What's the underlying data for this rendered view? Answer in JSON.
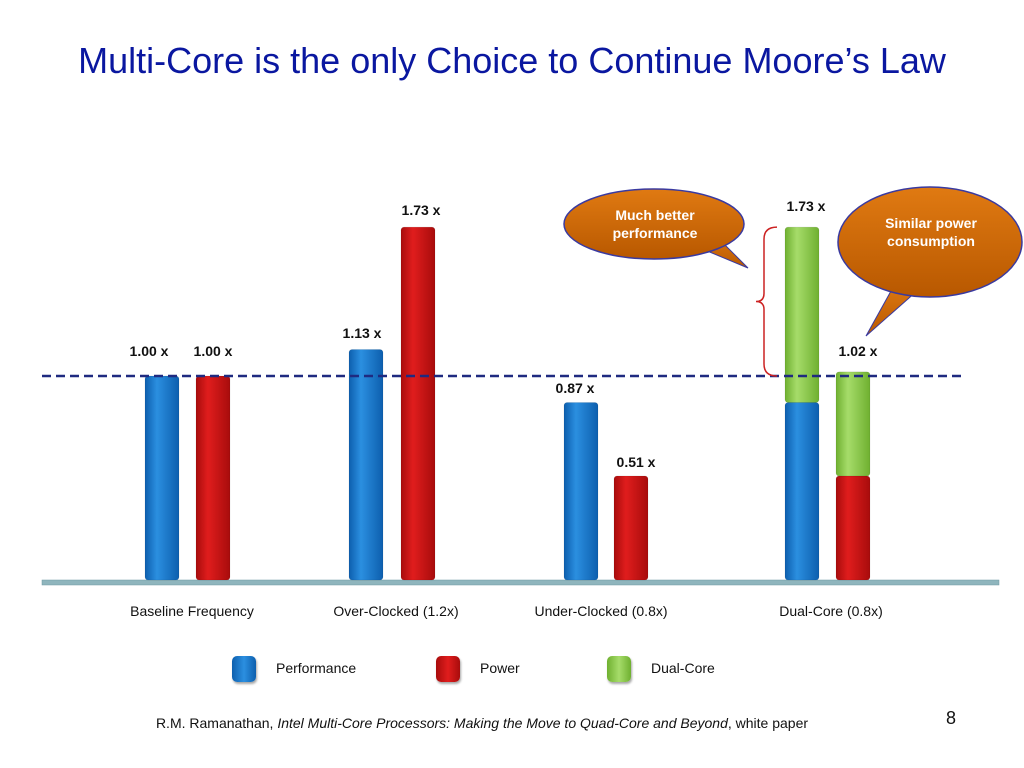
{
  "slide": {
    "title": "Multi-Core is the only Choice to Continue Moore’s Law",
    "page_number": "8"
  },
  "footer": {
    "author": "R.M. Ramanathan, ",
    "paper_title": "Intel Multi-Core Processors: Making the Move to Quad-Core and Beyond",
    "suffix": ", white paper"
  },
  "callouts": {
    "performance": "Much better performance",
    "power": "Similar power consumption"
  },
  "colors": {
    "performance": "#1a7fd0",
    "power": "#d01414",
    "dual_core": "#92d050",
    "baseline": "#1f2a80",
    "callout_fill": "#cc6600",
    "axis": "#8fb5bd"
  },
  "chart_data": {
    "type": "bar",
    "categories": [
      "Baseline Frequency",
      "Over-Clocked (1.2x)",
      "Under-Clocked (0.8x)",
      "Dual-Core (0.8x)"
    ],
    "series": [
      {
        "name": "Performance",
        "values": [
          1.0,
          1.13,
          0.87,
          0.87
        ],
        "labels": [
          "1.00 x",
          "1.13 x",
          "0.87 x",
          ""
        ]
      },
      {
        "name": "Power",
        "values": [
          1.0,
          1.73,
          0.51,
          0.51
        ],
        "labels": [
          "1.00 x",
          "1.73 x",
          "0.51 x",
          ""
        ]
      },
      {
        "name": "Dual-Core",
        "stacked_on": [
          null,
          null,
          null,
          "performance_and_power"
        ],
        "top_values": [
          null,
          null,
          null,
          [
            1.73,
            1.02
          ]
        ],
        "labels": [
          "",
          "",
          "",
          "1.73 x|1.02 x"
        ]
      }
    ],
    "baseline_value": 1.0,
    "ylim": [
      0,
      2.0
    ],
    "legend": [
      "Performance",
      "Power",
      "Dual-Core"
    ],
    "legend_position": "bottom",
    "grid": false
  }
}
